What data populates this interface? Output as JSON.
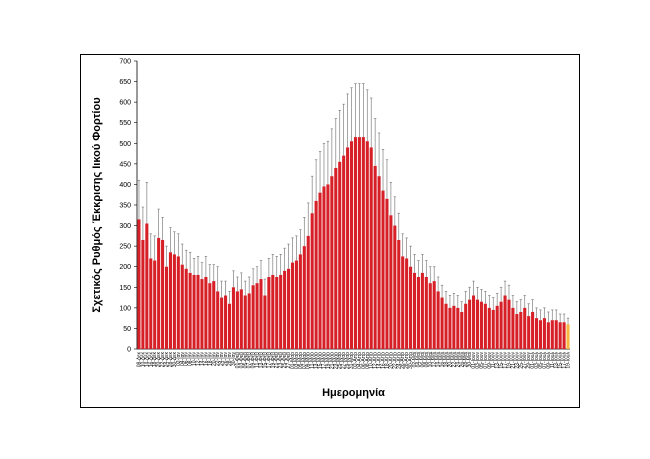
{
  "chart_data": {
    "type": "bar",
    "xlabel": "Ημερομηνία",
    "ylabel": "Σχετικός Ρυθμός Έκκρισης Ιικού Φορτίου",
    "ylim": [
      0,
      700
    ],
    "yticks": [
      0,
      50,
      100,
      150,
      200,
      250,
      300,
      350,
      400,
      450,
      500,
      550,
      600,
      650,
      700
    ],
    "grid": false,
    "colors": {
      "bar": "#d61f26",
      "last_bar": "#f5b942",
      "error": "#7f7f7f"
    },
    "categories": [
      "08-Δεκ",
      "10-Δεκ",
      "14-Δεκ",
      "16-Δεκ",
      "18-Δεκ",
      "20-Δεκ",
      "22-Δεκ",
      "24-Δεκ",
      "28-Δεκ",
      "30-Δεκ",
      "02-Ιαν",
      "04-Ιαν",
      "06-Ιαν",
      "08-Ιαν",
      "10-Ιαν",
      "12-Ιαν",
      "14-Ιαν",
      "16-Ιαν",
      "18-Ιαν",
      "20-Ιαν",
      "22-Ιαν",
      "24-Ιαν",
      "26-Ιαν",
      "28-Ιαν",
      "30-Ιαν",
      "01-Φεβ",
      "03-Φεβ",
      "05-Φεβ",
      "07-Φεβ",
      "09-Φεβ",
      "11-Φεβ",
      "13-Φεβ",
      "15-Φεβ",
      "17-Φεβ",
      "19-Φεβ",
      "21-Φεβ",
      "23-Φεβ",
      "25-Φεβ",
      "27-Φεβ",
      "01-Μαρ",
      "03-Μαρ",
      "05-Μαρ",
      "07-Μαρ",
      "09-Μαρ",
      "11-Μαρ",
      "13-Μαρ",
      "15-Μαρ",
      "17-Μαρ",
      "19-Μαρ",
      "21-Μαρ",
      "23-Μαρ",
      "25-Μαρ",
      "27-Μαρ",
      "29-Μαρ",
      "31-Μαρ",
      "02-Απρ",
      "04-Απρ",
      "06-Απρ",
      "08-Απρ",
      "10-Απρ",
      "12-Απρ",
      "14-Απρ",
      "16-Απρ",
      "18-Απρ",
      "20-Απρ",
      "22-Απρ",
      "24-Απρ",
      "26-Απρ",
      "28-Απρ",
      "30-Απρ",
      "02-Μαΐ",
      "04-Μαΐ",
      "06-Μαΐ",
      "08-Μαΐ",
      "10-Μαΐ",
      "12-Μαΐ",
      "14-Μαΐ",
      "16-Μαΐ",
      "18-Μαΐ",
      "20-Μαΐ",
      "22-Μαΐ",
      "24-Μαΐ",
      "26-Μαΐ",
      "28-Μαΐ",
      "30-Μαΐ",
      "01-Ιουν",
      "03-Ιουν",
      "05-Ιουν",
      "07-Ιουν",
      "09-Ιουν",
      "11-Ιουν",
      "13-Ιουν",
      "15-Ιουν",
      "17-Ιουν",
      "19-Ιουν",
      "21-Ιουν",
      "23-Ιουν",
      "25-Ιουν",
      "27-Ιουν",
      "29-Ιουν",
      "01-Ιουλ",
      "03-Ιουλ",
      "05-Ιουλ",
      "07-Ιουλ",
      "09-Ιουλ",
      "11-Ιουλ",
      "13-Ιουλ",
      "15-Ιουλ",
      "17-Ιουλ",
      "19-Ιουλ"
    ],
    "series": [
      {
        "values": [
          315,
          265,
          305,
          220,
          215,
          270,
          265,
          200,
          235,
          230,
          225,
          205,
          195,
          185,
          180,
          180,
          170,
          175,
          160,
          165,
          140,
          125,
          130,
          110,
          150,
          140,
          145,
          130,
          135,
          155,
          160,
          170,
          130,
          175,
          180,
          175,
          180,
          190,
          195,
          210,
          215,
          230,
          250,
          275,
          330,
          360,
          380,
          395,
          400,
          420,
          440,
          455,
          470,
          490,
          505,
          515,
          515,
          515,
          505,
          490,
          445,
          420,
          385,
          365,
          325,
          300,
          265,
          225,
          220,
          200,
          185,
          175,
          185,
          175,
          160,
          165,
          140,
          125,
          110,
          100,
          105,
          100,
          90,
          110,
          120,
          130,
          120,
          115,
          110,
          100,
          95,
          105,
          115,
          130,
          120,
          100,
          85,
          90,
          100,
          80,
          90,
          75,
          70,
          75,
          65,
          70,
          70,
          65,
          65,
          60
        ],
        "errors": [
          95,
          80,
          100,
          60,
          60,
          70,
          55,
          50,
          60,
          55,
          55,
          50,
          45,
          50,
          40,
          45,
          40,
          50,
          45,
          40,
          60,
          40,
          35,
          30,
          40,
          35,
          40,
          35,
          40,
          40,
          40,
          45,
          40,
          45,
          50,
          50,
          50,
          55,
          60,
          60,
          60,
          60,
          70,
          80,
          90,
          100,
          100,
          105,
          105,
          115,
          120,
          125,
          125,
          130,
          130,
          130,
          130,
          130,
          125,
          120,
          115,
          105,
          100,
          95,
          80,
          70,
          65,
          55,
          50,
          50,
          45,
          40,
          45,
          40,
          40,
          35,
          35,
          30,
          30,
          30,
          30,
          30,
          25,
          30,
          30,
          35,
          30,
          30,
          30,
          30,
          30,
          30,
          35,
          35,
          35,
          30,
          30,
          30,
          30,
          30,
          30,
          25,
          25,
          25,
          25,
          25,
          25,
          20,
          20,
          15
        ]
      }
    ]
  }
}
